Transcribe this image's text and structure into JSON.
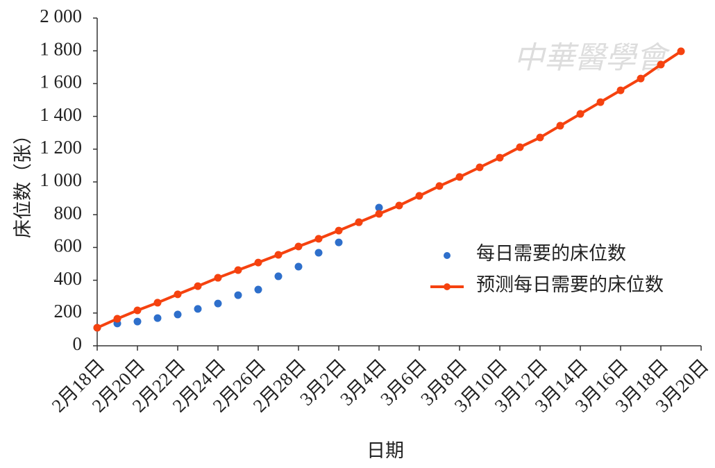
{
  "chart_data": {
    "type": "line",
    "watermark": "中華醫學會",
    "y_label": "床位数（张）",
    "x_label": "日期",
    "categories": [
      "2月18日",
      null,
      "2月20日",
      null,
      "2月22日",
      null,
      "2月24日",
      null,
      "2月26日",
      null,
      "2月28日",
      null,
      "3月2日",
      null,
      "3月4日",
      null,
      "3月6日",
      null,
      "3月8日",
      null,
      "3月10日",
      null,
      "3月12日",
      null,
      "3月14日",
      null,
      "3月16日",
      null,
      "3月18日",
      null,
      "3月20日"
    ],
    "series": [
      {
        "name": "每日需要的床位数",
        "type": "scatter",
        "color": "#2e6fcb",
        "values": [
          110,
          136,
          148,
          169,
          191,
          225,
          258,
          309,
          343,
          424,
          483,
          568,
          631,
          754,
          843,
          null,
          null,
          null,
          null,
          null,
          null,
          null,
          null,
          null,
          null,
          null,
          null,
          null,
          null,
          null,
          null
        ]
      },
      {
        "name": "预测每日需要的床位数",
        "type": "line",
        "color": "#f5420f",
        "values": [
          110,
          165,
          216,
          263,
          314,
          364,
          415,
          462,
          508,
          555,
          606,
          653,
          703,
          754,
          805,
          856,
          915,
          975,
          1030,
          1089,
          1148,
          1212,
          1271,
          1343,
          1415,
          1487,
          1559,
          1631,
          1716,
          1797,
          null
        ]
      }
    ],
    "ylim": [
      0,
      2000
    ],
    "yticks": [
      0,
      200,
      400,
      600,
      800,
      {
        "value": 1000,
        "label": "1 000"
      },
      {
        "value": 1200,
        "label": "1 200"
      },
      {
        "value": 1400,
        "label": "1 400"
      },
      {
        "value": 1600,
        "label": "1 600"
      },
      {
        "value": 1800,
        "label": "1 800"
      },
      {
        "value": 2000,
        "label": "2 000"
      }
    ],
    "grid": false,
    "legend": "right"
  }
}
